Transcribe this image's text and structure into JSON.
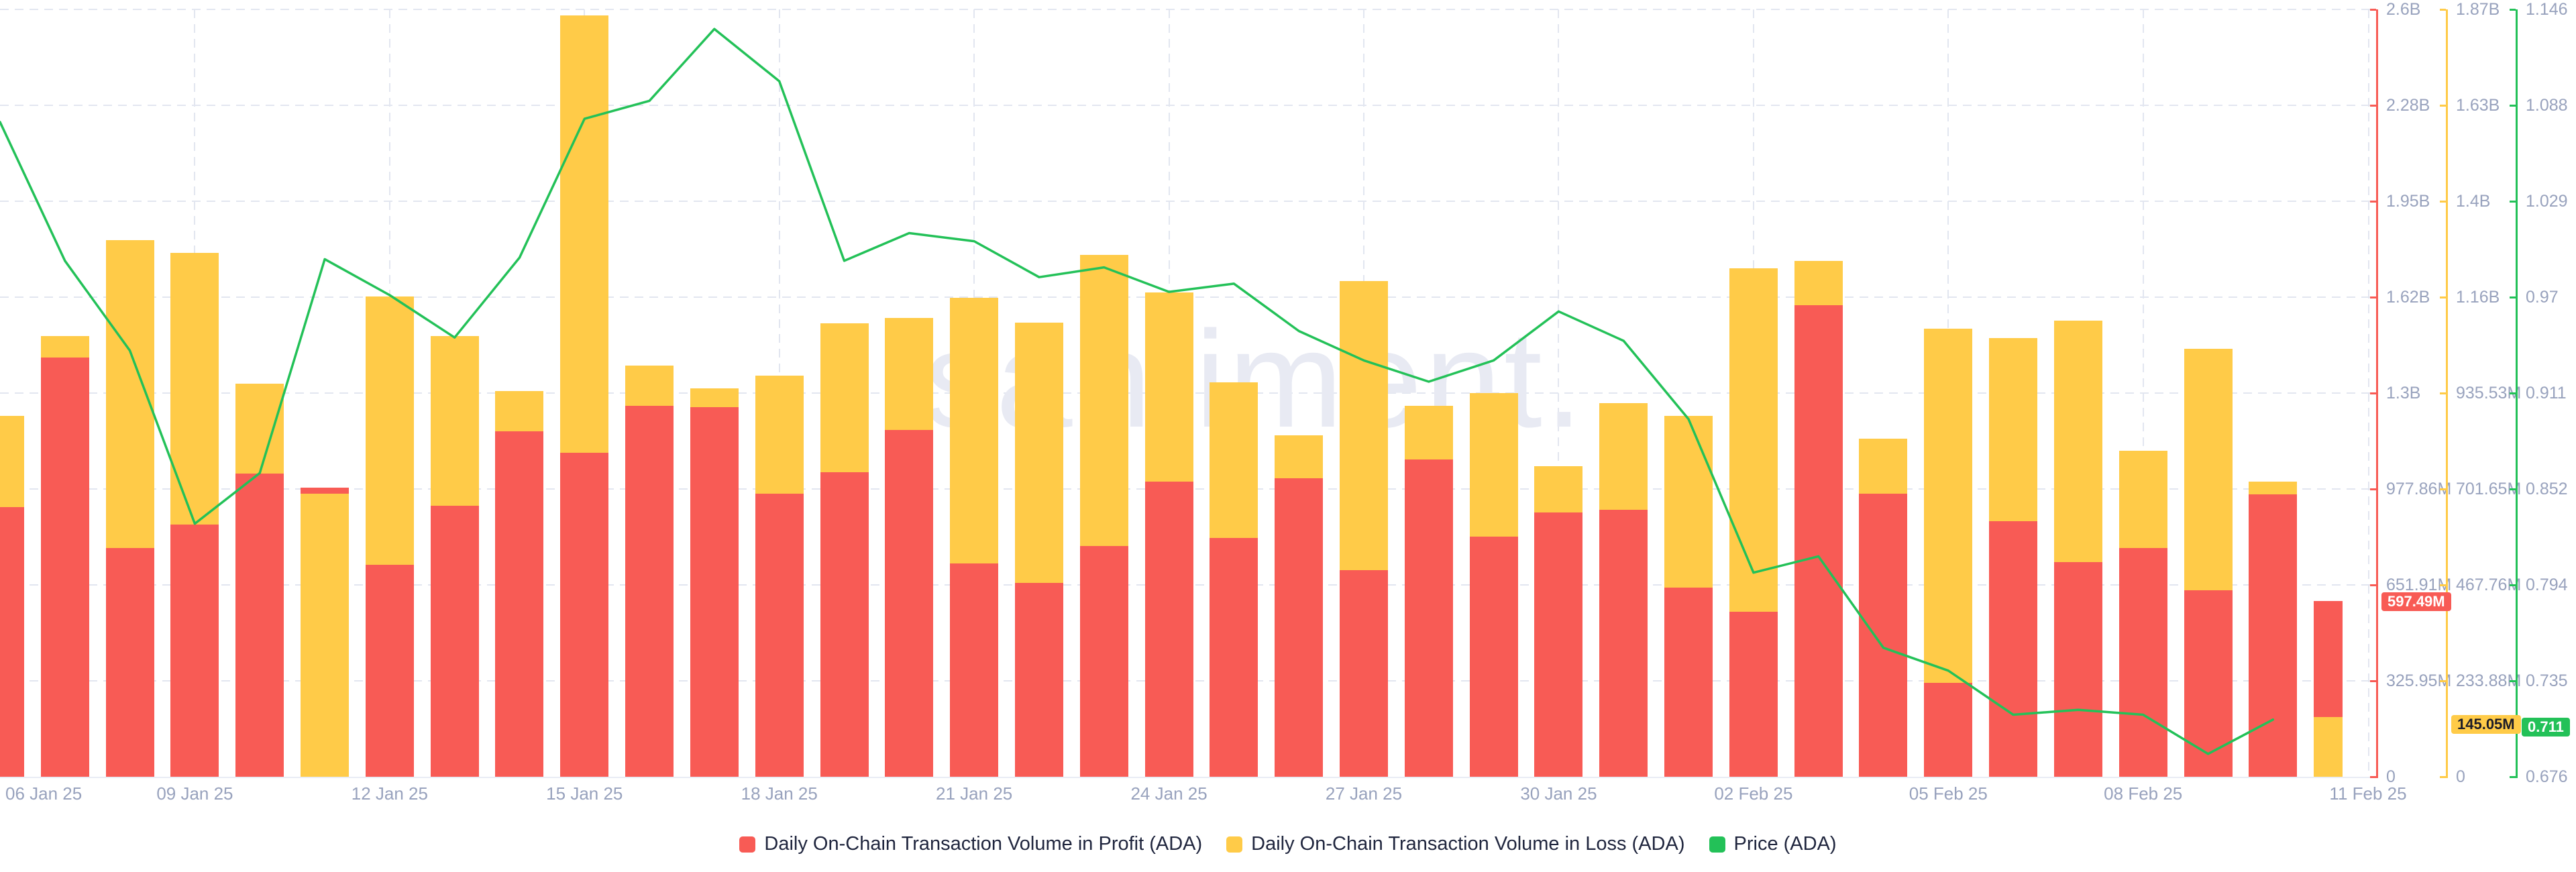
{
  "watermark": "santiment.",
  "colors": {
    "profit": "#f85b55",
    "loss": "#ffcb48",
    "price": "#23c158",
    "grid": "#e2e6f0",
    "axis_text": "#98a2bd",
    "legend_text": "#20263e",
    "watermark_text": "#e8eaf3",
    "badge_text_light": "#ffffff",
    "badge_text_dark": "#1c1c28"
  },
  "legend": {
    "items": [
      {
        "label": "Daily On-Chain Transaction Volume in Profit (ADA)",
        "series": "profit"
      },
      {
        "label": "Daily On-Chain Transaction Volume in Loss (ADA)",
        "series": "loss"
      },
      {
        "label": "Price (ADA)",
        "series": "price"
      }
    ]
  },
  "badges": {
    "profit": "597.49M",
    "loss": "145.05M",
    "price": "0.711"
  },
  "axes": {
    "profit": {
      "ticks": [
        "2.6B",
        "2.28B",
        "1.95B",
        "1.62B",
        "1.3B",
        "977.86M",
        "651.91M",
        "325.95M",
        "0"
      ]
    },
    "loss": {
      "ticks": [
        "1.87B",
        "1.63B",
        "1.4B",
        "1.16B",
        "935.53M",
        "701.65M",
        "467.76M",
        "233.88M",
        "0"
      ]
    },
    "price": {
      "ticks": [
        "1.146",
        "1.088",
        "1.029",
        "0.97",
        "0.911",
        "0.852",
        "0.794",
        "0.735",
        "0.676"
      ]
    }
  },
  "x_axis": {
    "tick_labels": [
      "06 Jan 25",
      "09 Jan 25",
      "12 Jan 25",
      "15 Jan 25",
      "18 Jan 25",
      "21 Jan 25",
      "24 Jan 25",
      "27 Jan 25",
      "30 Jan 25",
      "02 Feb 25",
      "05 Feb 25",
      "08 Feb 25",
      "11 Feb 25"
    ],
    "tick_day_index": [
      0,
      3,
      6,
      9,
      12,
      15,
      18,
      21,
      24,
      27,
      30,
      33,
      36
    ]
  },
  "chart_data": {
    "type": "bar",
    "note": "Overlaid (not stacked) daily bars from a shared zero baseline, each series on its own right-hand axis; green price line overlaid; volume values in millions of ADA",
    "categories": [
      "06 Jan 25",
      "07 Jan 25",
      "08 Jan 25",
      "09 Jan 25",
      "10 Jan 25",
      "11 Jan 25",
      "12 Jan 25",
      "13 Jan 25",
      "14 Jan 25",
      "15 Jan 25",
      "16 Jan 25",
      "17 Jan 25",
      "18 Jan 25",
      "19 Jan 25",
      "20 Jan 25",
      "21 Jan 25",
      "22 Jan 25",
      "23 Jan 25",
      "24 Jan 25",
      "25 Jan 25",
      "26 Jan 25",
      "27 Jan 25",
      "28 Jan 25",
      "29 Jan 25",
      "30 Jan 25",
      "31 Jan 25",
      "01 Feb 25",
      "02 Feb 25",
      "03 Feb 25",
      "04 Feb 25",
      "05 Feb 25",
      "06 Feb 25",
      "07 Feb 25",
      "08 Feb 25",
      "09 Feb 25",
      "10 Feb 25",
      "11 Feb 25"
    ],
    "series": [
      {
        "name": "Daily On-Chain Transaction Volume in Profit (ADA)",
        "type": "bar",
        "unit": "M",
        "axis_max_millions": 2607.6,
        "values_millions": [
          916,
          1425,
          777,
          857,
          1030,
          982,
          720,
          921,
          1174,
          1100,
          1261,
          1256,
          962,
          1035,
          1178,
          725,
          659,
          784,
          1003,
          811,
          1014,
          702,
          1078,
          816,
          898,
          907,
          643,
          561,
          1602,
          962,
          319,
          868,
          729,
          777,
          634,
          960,
          597.49
        ]
      },
      {
        "name": "Daily On-Chain Transaction Volume in Loss (ADA)",
        "type": "bar",
        "unit": "M",
        "axis_max_millions": 1871.04,
        "values_millions": [
          880,
          1074,
          1308,
          1277,
          958,
          690,
          1171,
          1074,
          940,
          1856,
          1003,
          947,
          978,
          1106,
          1119,
          1168,
          1107,
          1272,
          1181,
          962,
          832,
          1209,
          904,
          936,
          757,
          911,
          880,
          1240,
          1258,
          824,
          1093,
          1070,
          1112,
          795,
          1043,
          720,
          145.05
        ]
      },
      {
        "name": "Price (ADA)",
        "type": "line",
        "unit": "USD",
        "axis_min": 0.676,
        "axis_max": 1.146,
        "values": [
          1.077,
          0.992,
          0.937,
          0.831,
          0.862,
          0.993,
          0.971,
          0.945,
          0.994,
          1.079,
          1.09,
          1.134,
          1.102,
          0.992,
          1.009,
          1.004,
          0.982,
          0.988,
          0.973,
          0.978,
          0.949,
          0.931,
          0.918,
          0.931,
          0.961,
          0.943,
          0.895,
          0.801,
          0.811,
          0.755,
          0.741,
          0.714,
          0.717,
          0.714,
          0.69,
          0.711,
          null
        ]
      }
    ],
    "last_values": {
      "profit": "597.49M",
      "loss": "145.05M",
      "price": "0.711"
    },
    "legend_position": "bottom-center",
    "grid": true
  }
}
